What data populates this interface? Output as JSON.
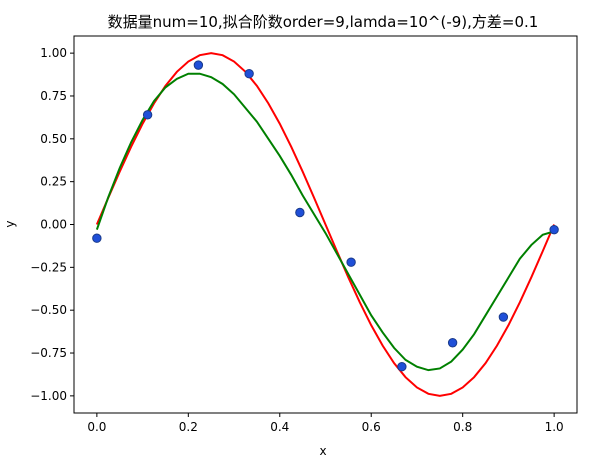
{
  "chart_data": {
    "type": "line",
    "title": "数据量num=10,拟合阶数order=9,lamda=10^(-9),方差=0.1",
    "xlabel": "x",
    "ylabel": "y",
    "xlim": [
      -0.05,
      1.05
    ],
    "ylim": [
      -1.1,
      1.1
    ],
    "x_ticks": [
      0.0,
      0.2,
      0.4,
      0.6,
      0.8,
      1.0
    ],
    "x_tick_labels": [
      "0.0",
      "0.2",
      "0.4",
      "0.6",
      "0.8",
      "1.0"
    ],
    "y_ticks": [
      1.0,
      0.75,
      0.5,
      0.25,
      0.0,
      -0.25,
      -0.5,
      -0.75,
      -1.0
    ],
    "y_tick_labels": [
      "1.00",
      "0.75",
      "0.50",
      "0.25",
      "0.00",
      "−0.25",
      "−0.50",
      "−0.75",
      "−1.00"
    ],
    "grid": false,
    "legend": "none",
    "series": [
      {
        "kind": "line",
        "color": "#ff0000",
        "x": [
          0.0,
          0.025,
          0.05,
          0.075,
          0.1,
          0.125,
          0.15,
          0.175,
          0.2,
          0.225,
          0.25,
          0.275,
          0.3,
          0.325,
          0.35,
          0.375,
          0.4,
          0.425,
          0.45,
          0.475,
          0.5,
          0.525,
          0.55,
          0.575,
          0.6,
          0.625,
          0.65,
          0.675,
          0.7,
          0.725,
          0.75,
          0.775,
          0.8,
          0.825,
          0.85,
          0.875,
          0.9,
          0.925,
          0.95,
          0.975,
          1.0
        ],
        "y": [
          0.0,
          0.156,
          0.309,
          0.454,
          0.588,
          0.707,
          0.809,
          0.891,
          0.951,
          0.988,
          1.0,
          0.988,
          0.951,
          0.891,
          0.809,
          0.707,
          0.588,
          0.454,
          0.309,
          0.156,
          0.0,
          -0.156,
          -0.309,
          -0.454,
          -0.588,
          -0.707,
          -0.809,
          -0.891,
          -0.951,
          -0.988,
          -1.0,
          -0.988,
          -0.951,
          -0.891,
          -0.809,
          -0.707,
          -0.588,
          -0.454,
          -0.309,
          -0.156,
          0.0
        ]
      },
      {
        "kind": "line",
        "color": "#008000",
        "x": [
          0.0,
          0.025,
          0.05,
          0.075,
          0.1,
          0.125,
          0.15,
          0.175,
          0.2,
          0.225,
          0.25,
          0.275,
          0.3,
          0.325,
          0.35,
          0.375,
          0.4,
          0.425,
          0.45,
          0.475,
          0.5,
          0.525,
          0.55,
          0.575,
          0.6,
          0.625,
          0.65,
          0.675,
          0.7,
          0.725,
          0.75,
          0.775,
          0.8,
          0.825,
          0.85,
          0.875,
          0.9,
          0.925,
          0.95,
          0.975,
          1.0
        ],
        "y": [
          -0.03,
          0.16,
          0.33,
          0.48,
          0.61,
          0.72,
          0.8,
          0.85,
          0.88,
          0.88,
          0.86,
          0.82,
          0.76,
          0.68,
          0.6,
          0.5,
          0.4,
          0.29,
          0.17,
          0.06,
          -0.05,
          -0.17,
          -0.29,
          -0.41,
          -0.53,
          -0.63,
          -0.72,
          -0.79,
          -0.83,
          -0.85,
          -0.84,
          -0.8,
          -0.73,
          -0.64,
          -0.53,
          -0.42,
          -0.31,
          -0.2,
          -0.12,
          -0.06,
          -0.04
        ]
      },
      {
        "kind": "scatter",
        "color": "#1f4fd8",
        "edge_color": "#1a3a8a",
        "x": [
          0.0,
          0.111,
          0.222,
          0.333,
          0.444,
          0.556,
          0.667,
          0.778,
          0.889,
          1.0
        ],
        "y": [
          -0.08,
          0.64,
          0.93,
          0.88,
          0.07,
          -0.22,
          -0.83,
          -0.69,
          -0.54,
          -0.03
        ]
      }
    ]
  }
}
